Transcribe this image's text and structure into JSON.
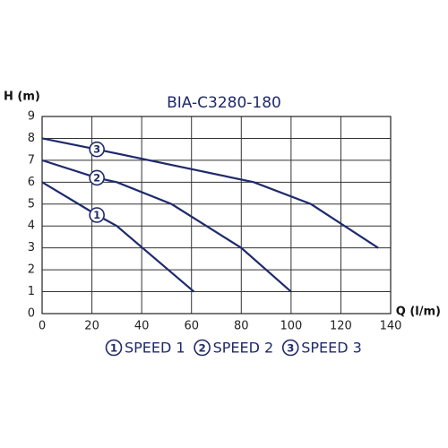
{
  "chart_data": {
    "type": "line",
    "title": "BIA-C3280-180",
    "x_label": "Q (l/m)",
    "y_label": "H (m)",
    "xlim": [
      0,
      140
    ],
    "xticks": [
      0,
      20,
      40,
      60,
      80,
      100,
      120,
      140
    ],
    "ylim": [
      0,
      9
    ],
    "yticks": [
      0,
      1,
      2,
      3,
      4,
      5,
      6,
      7,
      8,
      9
    ],
    "grid": true,
    "series": [
      {
        "name": "SPEED 1",
        "label": "1",
        "color": "#1f2a6b",
        "x": [
          0,
          22,
          30,
          61
        ],
        "values": [
          6,
          4.5,
          4,
          1
        ]
      },
      {
        "name": "SPEED 2",
        "label": "2",
        "color": "#1f2a6b",
        "x": [
          0,
          22,
          30,
          52,
          80,
          100
        ],
        "values": [
          7,
          6.2,
          6,
          5,
          3,
          1
        ]
      },
      {
        "name": "SPEED 3",
        "label": "3",
        "color": "#1f2a6b",
        "x": [
          0,
          22,
          85,
          108,
          135
        ],
        "values": [
          8,
          7.5,
          6,
          5,
          3
        ]
      }
    ]
  }
}
